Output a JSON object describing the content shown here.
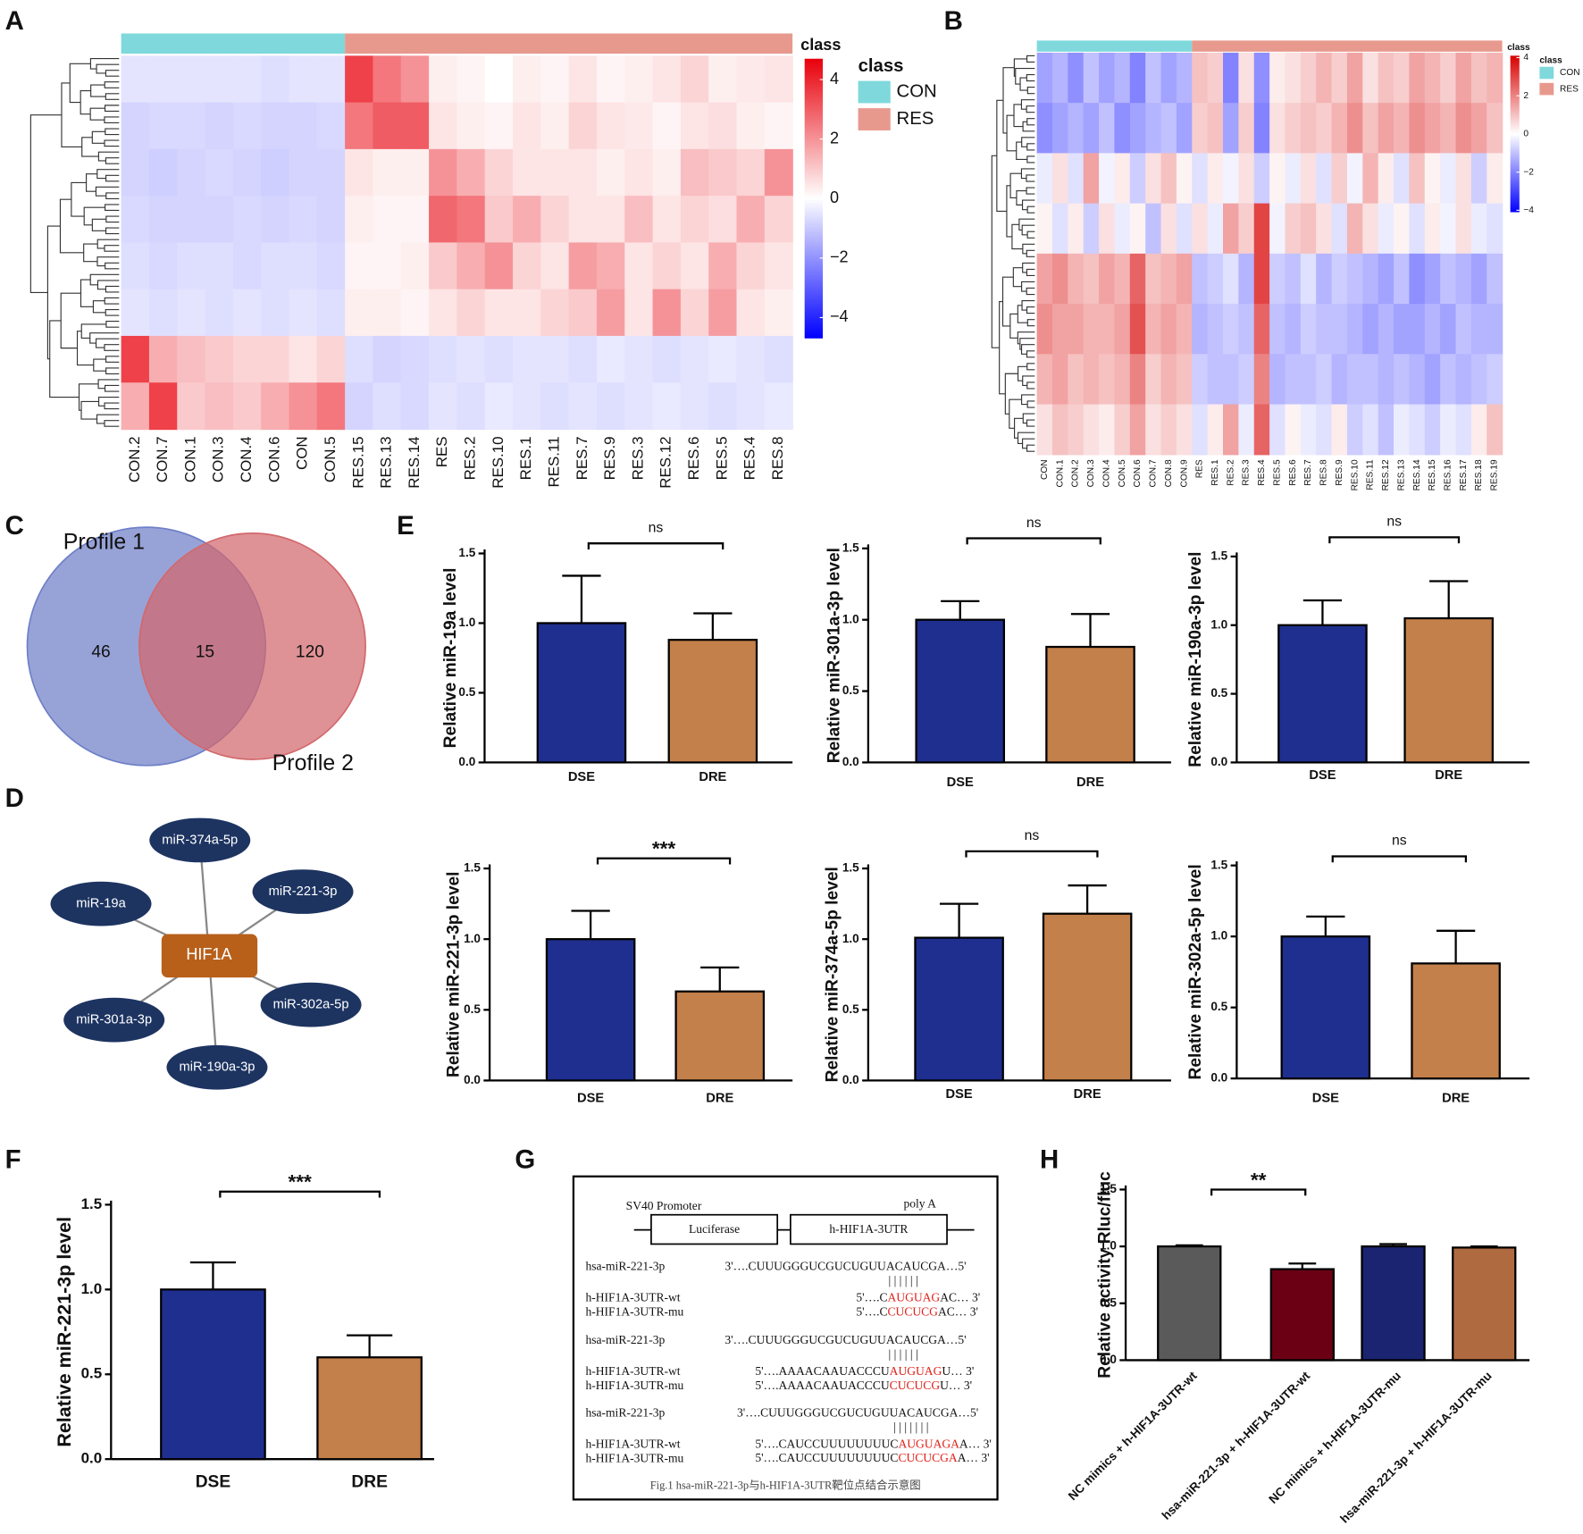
{
  "chart_data": [
    {
      "type": "heatmap",
      "panel": "A",
      "colorbar_title": "class",
      "legend_title": "class",
      "columns": [
        "CON.2",
        "CON.7",
        "CON.1",
        "CON.3",
        "CON.4",
        "CON.6",
        "CON",
        "CON.5",
        "RES.15",
        "RES.13",
        "RES.14",
        "RES",
        "RES.2",
        "RES.10",
        "RES.1",
        "RES.11",
        "RES.7",
        "RES.9",
        "RES.3",
        "RES.12",
        "RES.6",
        "RES.5",
        "RES.4",
        "RES.8"
      ],
      "classes": [
        {
          "name": "CON",
          "color": "#7fd9dc",
          "count": 8
        },
        {
          "name": "RES",
          "color": "#e8998d",
          "count": 16
        }
      ],
      "clim": [
        -4.7,
        4.7
      ],
      "cticks": [
        4,
        2,
        0,
        {
          "value": -2,
          "label": "−2"
        },
        {
          "value": -4,
          "label": "−4"
        }
      ],
      "colors": {
        "low": "#0000ff",
        "mid": "#ffffff",
        "high": "#e8000b"
      },
      "values": [
        [
          -0.5,
          -0.5,
          -0.5,
          -0.5,
          -0.5,
          -0.6,
          -0.5,
          -0.5,
          3.5,
          2.5,
          2.0,
          0.3,
          0.2,
          0,
          0.3,
          0.2,
          0.5,
          0.2,
          0.3,
          0.5,
          0.8,
          0.3,
          0.4,
          0.5
        ],
        [
          -0.8,
          -0.7,
          -0.7,
          -0.8,
          -0.7,
          -0.8,
          -0.8,
          -0.7,
          2.5,
          3.0,
          3.0,
          0.5,
          0.3,
          0.2,
          0.5,
          0.3,
          0.8,
          0.5,
          0.4,
          0.2,
          0.5,
          0.6,
          0.3,
          0.2
        ],
        [
          -0.8,
          -0.9,
          -0.8,
          -0.7,
          -0.8,
          -0.9,
          -0.8,
          -0.8,
          0.5,
          0.3,
          0.3,
          2.0,
          1.5,
          0.8,
          0.5,
          0.5,
          0.5,
          0.3,
          0.5,
          0.3,
          1.2,
          1.0,
          0.8,
          2.0
        ],
        [
          -0.7,
          -0.8,
          -0.8,
          -0.8,
          -0.7,
          -0.8,
          -0.7,
          -0.8,
          0.3,
          0.2,
          0.2,
          2.8,
          2.5,
          1.0,
          1.5,
          0.8,
          0.5,
          0.5,
          1.2,
          0.5,
          0.8,
          0.6,
          1.5,
          0.8
        ],
        [
          -0.6,
          -0.7,
          -0.6,
          -0.6,
          -0.7,
          -0.6,
          -0.6,
          -0.7,
          0.2,
          0.2,
          0.3,
          1.0,
          1.5,
          2.0,
          0.8,
          0.5,
          1.8,
          1.5,
          0.5,
          0.8,
          0.5,
          1.5,
          0.8,
          0.5
        ],
        [
          -0.5,
          -0.6,
          -0.5,
          -0.6,
          -0.5,
          -0.6,
          -0.5,
          -0.6,
          0.3,
          0.3,
          0.2,
          0.5,
          0.8,
          0.5,
          0.5,
          0.8,
          1.0,
          1.8,
          0.5,
          2.0,
          0.8,
          1.8,
          0.5,
          0.3
        ],
        [
          3.5,
          1.5,
          1.2,
          1.0,
          0.8,
          0.8,
          0.5,
          0.8,
          -0.6,
          -0.8,
          -0.7,
          -0.6,
          -0.5,
          -0.6,
          -0.5,
          -0.5,
          -0.6,
          -0.4,
          -0.5,
          -0.6,
          -0.5,
          -0.4,
          -0.5,
          -0.6
        ],
        [
          1.5,
          3.5,
          1.0,
          1.2,
          1.0,
          1.5,
          2.0,
          2.5,
          -0.8,
          -0.6,
          -0.7,
          -0.5,
          -0.6,
          -0.4,
          -0.5,
          -0.6,
          -0.5,
          -0.6,
          -0.5,
          -0.4,
          -0.5,
          -0.6,
          -0.5,
          -0.4
        ]
      ]
    },
    {
      "type": "heatmap",
      "panel": "B",
      "colorbar_title": "class",
      "legend_title": "class",
      "columns": [
        "CON",
        "CON.1",
        "CON.2",
        "CON.3",
        "CON.4",
        "CON.5",
        "CON.6",
        "CON.7",
        "CON.8",
        "CON.9",
        "RES",
        "RES.1",
        "RES.2",
        "RES.3",
        "RES.4",
        "RES.5",
        "RES.6",
        "RES.7",
        "RES.8",
        "RES.9",
        "RES.10",
        "RES.11",
        "RES.12",
        "RES.13",
        "RES.14",
        "RES.15",
        "RES.16",
        "RES.17",
        "RES.18",
        "RES.19"
      ],
      "classes": [
        {
          "name": "CON",
          "color": "#7fd9dc",
          "count": 10
        },
        {
          "name": "RES",
          "color": "#e8998d",
          "count": 20
        }
      ],
      "clim": [
        -4.1,
        4.1
      ],
      "cticks": [
        4,
        2,
        0,
        {
          "value": -2,
          "label": "−2"
        },
        {
          "value": -4,
          "label": "−4"
        }
      ],
      "colors": {
        "low": "#0000ff",
        "mid": "#ffffff",
        "high": "#d80000"
      },
      "values": [
        [
          -1.5,
          -1.2,
          -1.8,
          -1.0,
          -1.5,
          -1.2,
          -2.0,
          -1.0,
          -1.5,
          -1.2,
          1.0,
          0.8,
          -2.0,
          0.5,
          -1.8,
          0.3,
          0.5,
          0.8,
          1.2,
          0.8,
          1.5,
          0.5,
          1.0,
          0.8,
          1.5,
          1.2,
          0.8,
          1.5,
          1.0,
          1.2
        ],
        [
          -1.8,
          -1.5,
          -1.2,
          -1.5,
          -1.0,
          -1.8,
          -1.5,
          -1.2,
          -1.0,
          -1.5,
          0.8,
          1.0,
          -1.5,
          0.8,
          -2.0,
          0.5,
          0.8,
          1.0,
          0.8,
          1.2,
          1.8,
          1.0,
          1.5,
          1.2,
          1.8,
          1.5,
          1.2,
          1.8,
          1.5,
          1.0
        ],
        [
          -0.3,
          0.5,
          -0.5,
          1.5,
          -0.2,
          0.3,
          -0.8,
          0.5,
          1.0,
          0.2,
          -0.5,
          0.3,
          -0.2,
          0.5,
          -0.8,
          0.2,
          -0.3,
          0.5,
          -0.5,
          0.8,
          -0.2,
          1.2,
          0.3,
          -0.5,
          1.0,
          0.2,
          -0.3,
          0.5,
          -0.8,
          0.3
        ],
        [
          0.2,
          -0.5,
          0.3,
          -0.8,
          0.5,
          -0.3,
          0.2,
          -1.0,
          0.5,
          -0.5,
          0.5,
          -0.3,
          1.5,
          0.8,
          3.0,
          -0.2,
          0.8,
          1.0,
          0.5,
          -0.5,
          1.2,
          0.5,
          -0.3,
          0.2,
          -0.5,
          0.3,
          -0.2,
          0.5,
          -0.3,
          -0.5
        ],
        [
          1.5,
          1.8,
          1.2,
          1.0,
          1.5,
          1.2,
          2.5,
          1.0,
          1.2,
          1.5,
          -1.0,
          -0.8,
          -0.5,
          -1.2,
          3.0,
          -0.8,
          -1.0,
          -0.5,
          -1.2,
          -0.8,
          -1.0,
          -1.2,
          -1.5,
          -1.0,
          -1.8,
          -1.5,
          -1.0,
          -1.2,
          -1.5,
          -1.0
        ],
        [
          1.8,
          1.5,
          1.5,
          1.2,
          1.2,
          1.5,
          2.8,
          1.2,
          1.5,
          1.2,
          -1.2,
          -1.0,
          -0.8,
          -1.0,
          2.5,
          -1.0,
          -1.2,
          -0.8,
          -1.0,
          -1.0,
          -1.2,
          -1.5,
          -1.2,
          -1.5,
          -1.5,
          -1.2,
          -1.5,
          -1.0,
          -1.2,
          -1.2
        ],
        [
          1.2,
          1.5,
          1.0,
          1.2,
          1.0,
          1.2,
          2.0,
          0.8,
          1.2,
          1.0,
          -0.8,
          -1.0,
          -1.0,
          -0.8,
          2.0,
          -1.2,
          -1.0,
          -1.0,
          -0.8,
          -1.2,
          -1.0,
          -1.0,
          -1.2,
          -1.0,
          -1.2,
          -1.5,
          -1.0,
          -1.2,
          -1.0,
          -0.8
        ],
        [
          0.5,
          1.0,
          0.8,
          0.5,
          0.3,
          0.8,
          1.5,
          0.5,
          0.8,
          0.5,
          -0.5,
          0.3,
          1.5,
          -0.3,
          2.5,
          -0.5,
          0.2,
          -0.3,
          -0.5,
          0.3,
          -0.8,
          -0.5,
          -1.0,
          -0.3,
          -0.5,
          -0.8,
          -0.3,
          -0.5,
          0.3,
          1.0
        ]
      ]
    },
    {
      "type": "venn",
      "panel": "C",
      "sets": [
        {
          "name": "Profile 1",
          "color": "#6f80c8"
        },
        {
          "name": "Profile 2",
          "color": "#d2686c"
        }
      ],
      "only_first": 46,
      "both": 15,
      "only_second": 120
    },
    {
      "type": "network",
      "panel": "D",
      "center": "HIF1A",
      "nodes": [
        "miR-374a-5p",
        "miR-19a",
        "miR-221-3p",
        "miR-302a-5p",
        "miR-301a-3p",
        "miR-190a-3p"
      ]
    },
    {
      "type": "bar",
      "panel": "E",
      "ylabel": "Relative miR-19a level",
      "categories": [
        "DSE",
        "DRE"
      ],
      "values": [
        1.0,
        0.88
      ],
      "errors": [
        0.34,
        0.19
      ],
      "colors": [
        "#1f2f8f",
        "#c4804a"
      ],
      "ylim": [
        0,
        1.5
      ],
      "yticks": [
        {
          "value": 0,
          "label": "0.0"
        },
        0.5,
        {
          "value": 1,
          "label": "1.0"
        },
        1.5
      ],
      "significance": "ns"
    },
    {
      "type": "bar",
      "ylabel": "Relative miR-301a-3p level",
      "categories": [
        "DSE",
        "DRE"
      ],
      "values": [
        1.0,
        0.81
      ],
      "errors": [
        0.13,
        0.23
      ],
      "colors": [
        "#1f2f8f",
        "#c4804a"
      ],
      "ylim": [
        0,
        1.5
      ],
      "yticks": [
        {
          "value": 0,
          "label": "0.0"
        },
        0.5,
        {
          "value": 1,
          "label": "1.0"
        },
        1.5
      ],
      "significance": "ns"
    },
    {
      "type": "bar",
      "ylabel": "Relative miR-190a-3p level",
      "categories": [
        "DSE",
        "DRE"
      ],
      "values": [
        1.0,
        1.05
      ],
      "errors": [
        0.18,
        0.27
      ],
      "colors": [
        "#1f2f8f",
        "#c4804a"
      ],
      "ylim": [
        0,
        1.5
      ],
      "yticks": [
        {
          "value": 0,
          "label": "0.0"
        },
        0.5,
        {
          "value": 1,
          "label": "1.0"
        },
        1.5
      ],
      "significance": "ns"
    },
    {
      "type": "bar",
      "ylabel": "Relative miR-221-3p level",
      "categories": [
        "DSE",
        "DRE"
      ],
      "values": [
        1.0,
        0.63
      ],
      "errors": [
        0.2,
        0.17
      ],
      "colors": [
        "#1f2f8f",
        "#c4804a"
      ],
      "ylim": [
        0,
        1.5
      ],
      "yticks": [
        {
          "value": 0,
          "label": "0.0"
        },
        0.5,
        {
          "value": 1,
          "label": "1.0"
        },
        1.5
      ],
      "significance": "***"
    },
    {
      "type": "bar",
      "ylabel": "Relative miR-374a-5p level",
      "categories": [
        "DSE",
        "DRE"
      ],
      "values": [
        1.01,
        1.18
      ],
      "errors": [
        0.24,
        0.2
      ],
      "colors": [
        "#1f2f8f",
        "#c4804a"
      ],
      "ylim": [
        0,
        1.5
      ],
      "yticks": [
        {
          "value": 0,
          "label": "0.0"
        },
        0.5,
        {
          "value": 1,
          "label": "1.0"
        },
        1.5
      ],
      "significance": "ns"
    },
    {
      "type": "bar",
      "ylabel": "Relative miR-302a-5p level",
      "categories": [
        "DSE",
        "DRE"
      ],
      "values": [
        1.0,
        0.81
      ],
      "errors": [
        0.14,
        0.23
      ],
      "colors": [
        "#1f2f8f",
        "#c4804a"
      ],
      "ylim": [
        0,
        1.5
      ],
      "yticks": [
        {
          "value": 0,
          "label": "0.0"
        },
        0.5,
        {
          "value": 1,
          "label": "1.0"
        },
        1.5
      ],
      "significance": "ns"
    },
    {
      "type": "bar",
      "panel": "F",
      "ylabel": "Relative miR-221-3p level",
      "categories": [
        "DSE",
        "DRE"
      ],
      "values": [
        1.0,
        0.6
      ],
      "errors": [
        0.16,
        0.13
      ],
      "colors": [
        "#1f2f8f",
        "#c4804a"
      ],
      "ylim": [
        0,
        1.5
      ],
      "yticks": [
        {
          "value": 0,
          "label": "0.0"
        },
        0.5,
        {
          "value": 1,
          "label": "1.0"
        },
        1.5
      ],
      "significance": "***"
    },
    {
      "type": "bar",
      "panel": "H",
      "ylabel": "Relative activity Rluc/fluc",
      "categories": [
        "NC mimics + h-HIF1A-3UTR-wt",
        "hsa-miR-221-3p + h-HIF1A-3UTR-wt",
        "NC mimics + h-HIF1A-3UTR-mu",
        "hsa-miR-221-3p + h-HIF1A-3UTR-mu"
      ],
      "values": [
        1.0,
        0.8,
        1.0,
        0.99
      ],
      "errors": [
        0.01,
        0.05,
        0.02,
        0.01
      ],
      "colors": [
        "#5a5a5a",
        "#6b0015",
        "#1a2470",
        "#b06a40"
      ],
      "ylim": [
        0,
        1.5
      ],
      "yticks": [
        {
          "value": 0,
          "label": "0.0"
        },
        0.5,
        {
          "value": 1,
          "label": "1.0"
        },
        1.5
      ],
      "significance": "**"
    }
  ],
  "diagram": {
    "panel": "G",
    "promoter": "SV40 Promoter",
    "poly_a": "poly A",
    "boxes": [
      "Luciferase",
      "h-HIF1A-3UTR"
    ],
    "blocks": [
      {
        "mirna": "hsa-miR-221-3p",
        "mirna_seq": "3'….CUUUGGGUCGUCUGUUACAUCGA…5'",
        "pairing": "| | | | | |",
        "wt_name": "h-HIF1A-3UTR-wt",
        "wt_seq": [
          "5'….C",
          "AUGUAG",
          "AC… 3'"
        ],
        "mu_name": "h-HIF1A-3UTR-mu",
        "mu_seq": [
          "5'….C",
          "CUCUCG",
          "AC… 3'"
        ]
      },
      {
        "mirna": "hsa-miR-221-3p",
        "mirna_seq": "3'….CUUUGGGUCGUCUGUUACAUCGA…5'",
        "pairing": "| | | | | |",
        "wt_name": "h-HIF1A-3UTR-wt",
        "wt_seq": [
          "5'….AAAACAAUACCCU",
          "AUGUAG",
          "U… 3'"
        ],
        "mu_name": "h-HIF1A-3UTR-mu",
        "mu_seq": [
          "5'….AAAACAAUACCCU",
          "CUCUCG",
          "U… 3'"
        ]
      },
      {
        "mirna": "hsa-miR-221-3p",
        "mirna_seq": "3'….CUUUGGGUCGUCUGUUACAUCGA…5'",
        "pairing": "| | | | | | |",
        "wt_name": "h-HIF1A-3UTR-wt",
        "wt_seq": [
          "5'….CAUCCUUUUUUUUC",
          "AUGUAGA",
          "A… 3'"
        ],
        "mu_name": "h-HIF1A-3UTR-mu",
        "mu_seq": [
          "5'….CAUCCUUUUUUUUC",
          "CUCUCGA",
          "A… 3'"
        ]
      }
    ],
    "caption": "Fig.1 hsa-miR-221-3p与h-HIF1A-3UTR靶位点结合示意图"
  }
}
